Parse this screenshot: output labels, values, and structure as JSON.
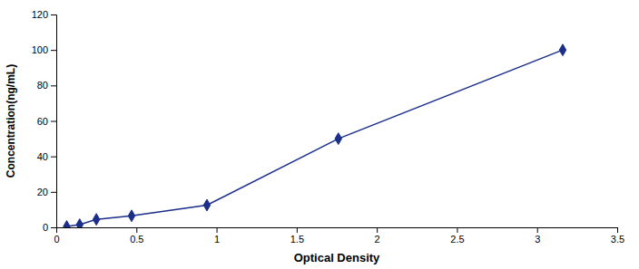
{
  "chart_data": {
    "type": "line",
    "x": [
      0.065,
      0.146,
      0.25,
      0.47,
      0.94,
      1.76,
      3.16
    ],
    "values": [
      0.5,
      1.5,
      4.5,
      6.5,
      12.5,
      50,
      100
    ],
    "color": "#1a2e8a",
    "marker": "diamond",
    "line_style": "solid",
    "xlabel": "Optical Density",
    "ylabel": "Concentration(ng/mL)",
    "xlim": [
      0,
      3.5
    ],
    "ylim": [
      0,
      120
    ],
    "xticks": [
      0,
      0.5,
      1,
      1.5,
      2,
      2.5,
      3,
      3.5
    ],
    "yticks": [
      0,
      20,
      40,
      60,
      80,
      100,
      120
    ],
    "grid": false
  }
}
